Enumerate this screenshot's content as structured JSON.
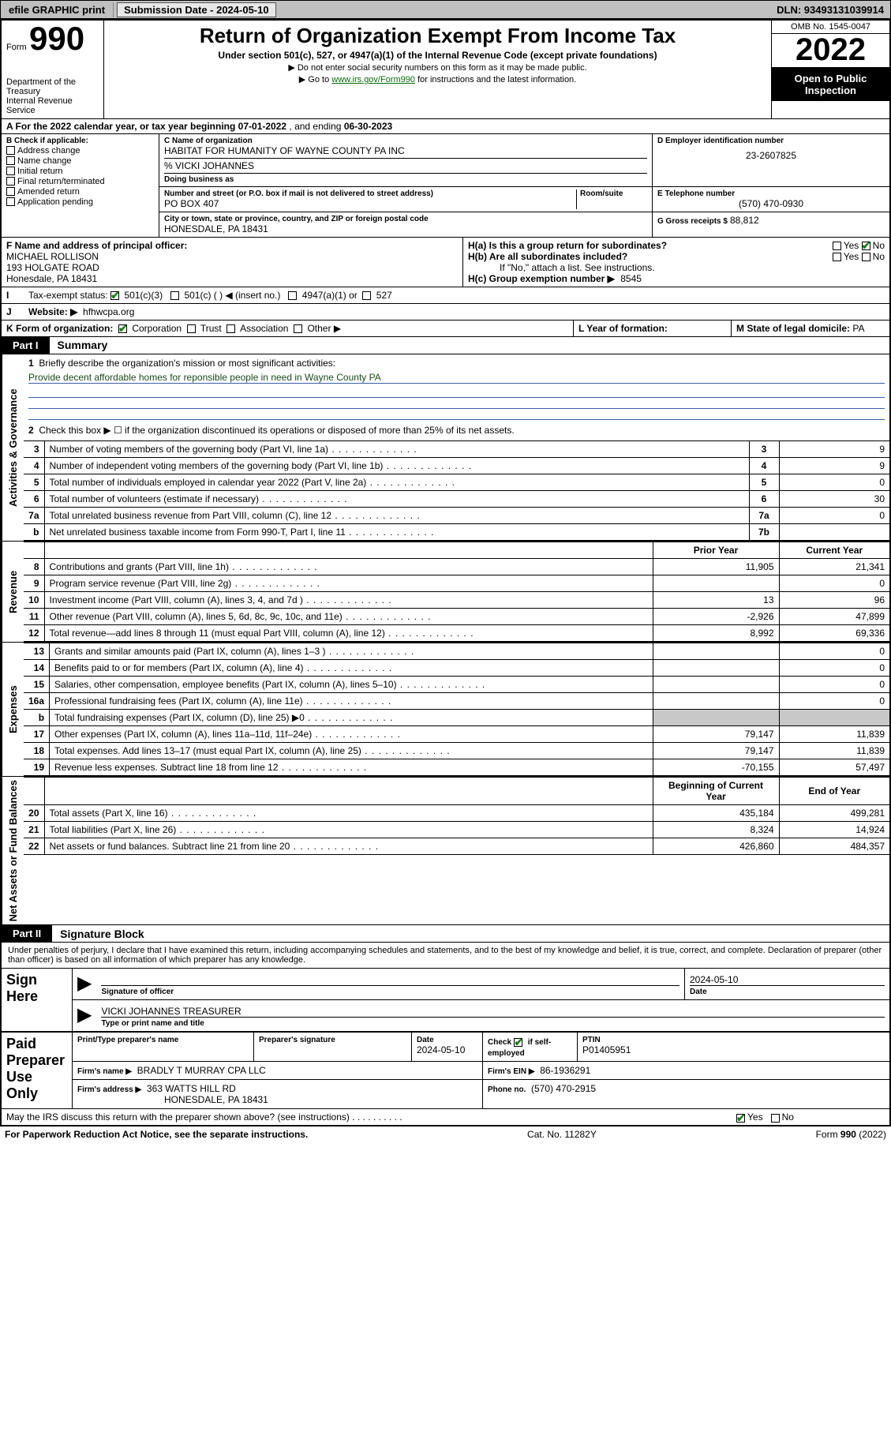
{
  "top_bar": {
    "efile": "efile GRAPHIC print",
    "submission_label": "Submission Date - 2024-05-10",
    "dln": "DLN: 93493131039914"
  },
  "header": {
    "form_prefix": "Form",
    "form_number": "990",
    "title": "Return of Organization Exempt From Income Tax",
    "subtitle": "Under section 501(c), 527, or 4947(a)(1) of the Internal Revenue Code (except private foundations)",
    "note1": "▶ Do not enter social security numbers on this form as it may be made public.",
    "note2_prefix": "▶ Go to ",
    "note2_link": "www.irs.gov/Form990",
    "note2_suffix": " for instructions and the latest information.",
    "omb": "OMB No. 1545-0047",
    "year": "2022",
    "inspection": "Open to Public Inspection",
    "dept": "Department of the Treasury",
    "irs": "Internal Revenue Service"
  },
  "section_a": {
    "text_prefix": "A For the 2022 calendar year, or tax year beginning ",
    "begin": "07-01-2022",
    "mid": " , and ending ",
    "end": "06-30-2023"
  },
  "box_b": {
    "title": "B Check if applicable:",
    "items": [
      "Address change",
      "Name change",
      "Initial return",
      "Final return/terminated",
      "Amended return",
      "Application pending"
    ]
  },
  "box_c": {
    "name_label": "C Name of organization",
    "name": "HABITAT FOR HUMANITY OF WAYNE COUNTY PA INC",
    "care_of": "% VICKI JOHANNES",
    "dba_label": "Doing business as",
    "addr_label": "Number and street (or P.O. box if mail is not delivered to street address)",
    "room_label": "Room/suite",
    "addr": "PO BOX 407",
    "city_label": "City or town, state or province, country, and ZIP or foreign postal code",
    "city": "HONESDALE, PA  18431"
  },
  "box_d": {
    "label": "D Employer identification number",
    "val": "23-2607825"
  },
  "box_e": {
    "label": "E Telephone number",
    "val": "(570) 470-0930"
  },
  "box_g": {
    "label": "G Gross receipts $",
    "val": "88,812"
  },
  "box_f": {
    "label": "F Name and address of principal officer:",
    "name": "MICHAEL ROLLISON",
    "addr1": "193 HOLGATE ROAD",
    "addr2": "Honesdale, PA  18431"
  },
  "box_h": {
    "ha_label": "H(a)  Is this a group return for subordinates?",
    "hb_label": "H(b)  Are all subordinates included?",
    "note": "If \"No,\" attach a list. See instructions.",
    "hc_label": "H(c)  Group exemption number ▶",
    "hc_val": "8545",
    "yes": "Yes",
    "no": "No"
  },
  "box_i": {
    "label": "Tax-exempt status:",
    "opt1": "501(c)(3)",
    "opt2": "501(c) (   ) ◀ (insert no.)",
    "opt3": "4947(a)(1) or",
    "opt4": "527"
  },
  "box_j": {
    "label": "Website: ▶",
    "val": "hfhwcpa.org"
  },
  "box_k": {
    "label": "K Form of organization:",
    "opts": [
      "Corporation",
      "Trust",
      "Association",
      "Other ▶"
    ]
  },
  "box_l": {
    "label": "L Year of formation:",
    "val": ""
  },
  "box_m": {
    "label": "M State of legal domicile:",
    "val": "PA"
  },
  "part1": {
    "tab": "Part I",
    "title": "Summary",
    "line1_label": "Briefly describe the organization's mission or most significant activities:",
    "mission": "Provide decent affordable homes for reponsible people in need in Wayne County PA",
    "line2": "Check this box ▶ ☐  if the organization discontinued its operations or disposed of more than 25% of its net assets.",
    "prior_year_hdr": "Prior Year",
    "current_year_hdr": "Current Year",
    "begin_hdr": "Beginning of Current Year",
    "end_hdr": "End of Year"
  },
  "governance_lines": [
    {
      "n": "3",
      "desc": "Number of voting members of the governing body (Part VI, line 1a)",
      "box": "3",
      "val": "9"
    },
    {
      "n": "4",
      "desc": "Number of independent voting members of the governing body (Part VI, line 1b)",
      "box": "4",
      "val": "9"
    },
    {
      "n": "5",
      "desc": "Total number of individuals employed in calendar year 2022 (Part V, line 2a)",
      "box": "5",
      "val": "0"
    },
    {
      "n": "6",
      "desc": "Total number of volunteers (estimate if necessary)",
      "box": "6",
      "val": "30"
    },
    {
      "n": "7a",
      "desc": "Total unrelated business revenue from Part VIII, column (C), line 12",
      "box": "7a",
      "val": "0"
    },
    {
      "n": "b",
      "desc": "Net unrelated business taxable income from Form 990-T, Part I, line 11",
      "box": "7b",
      "val": ""
    }
  ],
  "revenue_lines": [
    {
      "n": "8",
      "desc": "Contributions and grants (Part VIII, line 1h)",
      "prior": "11,905",
      "curr": "21,341"
    },
    {
      "n": "9",
      "desc": "Program service revenue (Part VIII, line 2g)",
      "prior": "",
      "curr": "0"
    },
    {
      "n": "10",
      "desc": "Investment income (Part VIII, column (A), lines 3, 4, and 7d )",
      "prior": "13",
      "curr": "96"
    },
    {
      "n": "11",
      "desc": "Other revenue (Part VIII, column (A), lines 5, 6d, 8c, 9c, 10c, and 11e)",
      "prior": "-2,926",
      "curr": "47,899"
    },
    {
      "n": "12",
      "desc": "Total revenue—add lines 8 through 11 (must equal Part VIII, column (A), line 12)",
      "prior": "8,992",
      "curr": "69,336"
    }
  ],
  "expense_lines": [
    {
      "n": "13",
      "desc": "Grants and similar amounts paid (Part IX, column (A), lines 1–3 )",
      "prior": "",
      "curr": "0"
    },
    {
      "n": "14",
      "desc": "Benefits paid to or for members (Part IX, column (A), line 4)",
      "prior": "",
      "curr": "0"
    },
    {
      "n": "15",
      "desc": "Salaries, other compensation, employee benefits (Part IX, column (A), lines 5–10)",
      "prior": "",
      "curr": "0"
    },
    {
      "n": "16a",
      "desc": "Professional fundraising fees (Part IX, column (A), line 11e)",
      "prior": "",
      "curr": "0"
    },
    {
      "n": "b",
      "desc": "Total fundraising expenses (Part IX, column (D), line 25) ▶0",
      "prior": "SHADE",
      "curr": "SHADE"
    },
    {
      "n": "17",
      "desc": "Other expenses (Part IX, column (A), lines 11a–11d, 11f–24e)",
      "prior": "79,147",
      "curr": "11,839"
    },
    {
      "n": "18",
      "desc": "Total expenses. Add lines 13–17 (must equal Part IX, column (A), line 25)",
      "prior": "79,147",
      "curr": "11,839"
    },
    {
      "n": "19",
      "desc": "Revenue less expenses. Subtract line 18 from line 12",
      "prior": "-70,155",
      "curr": "57,497"
    }
  ],
  "netassets_lines": [
    {
      "n": "20",
      "desc": "Total assets (Part X, line 16)",
      "prior": "435,184",
      "curr": "499,281"
    },
    {
      "n": "21",
      "desc": "Total liabilities (Part X, line 26)",
      "prior": "8,324",
      "curr": "14,924"
    },
    {
      "n": "22",
      "desc": "Net assets or fund balances. Subtract line 21 from line 20",
      "prior": "426,860",
      "curr": "484,357"
    }
  ],
  "side_labels": {
    "gov": "Activities & Governance",
    "rev": "Revenue",
    "exp": "Expenses",
    "net": "Net Assets or Fund Balances"
  },
  "part2": {
    "tab": "Part II",
    "title": "Signature Block",
    "penalties": "Under penalties of perjury, I declare that I have examined this return, including accompanying schedules and statements, and to the best of my knowledge and belief, it is true, correct, and complete. Declaration of preparer (other than officer) is based on all information of which preparer has any knowledge."
  },
  "sign_here": {
    "label": "Sign Here",
    "sig_officer_caption": "Signature of officer",
    "date_caption": "Date",
    "date_val": "2024-05-10",
    "name_title": "VICKI JOHANNES TREASURER",
    "name_caption": "Type or print name and title"
  },
  "paid_preparer": {
    "label": "Paid Preparer Use Only",
    "col1": "Print/Type preparer's name",
    "col2": "Preparer's signature",
    "col3_label": "Date",
    "col3_val": "2024-05-10",
    "col4_label": "Check",
    "col4_suffix": "if self-employed",
    "col5_label": "PTIN",
    "col5_val": "P01405951",
    "firm_name_label": "Firm's name   ▶",
    "firm_name": "BRADLY T MURRAY CPA LLC",
    "firm_ein_label": "Firm's EIN ▶",
    "firm_ein": "86-1936291",
    "firm_addr_label": "Firm's address ▶",
    "firm_addr1": "363 WATTS HILL RD",
    "firm_addr2": "HONESDALE, PA  18431",
    "phone_label": "Phone no.",
    "phone": "(570) 470-2915"
  },
  "discuss": {
    "text": "May the IRS discuss this return with the preparer shown above? (see instructions)",
    "yes": "Yes",
    "no": "No"
  },
  "footer": {
    "left": "For Paperwork Reduction Act Notice, see the separate instructions.",
    "mid": "Cat. No. 11282Y",
    "right": "Form 990 (2022)"
  }
}
